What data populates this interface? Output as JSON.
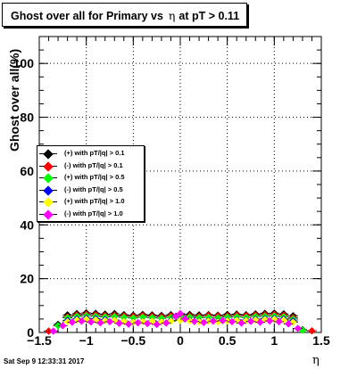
{
  "title": {
    "part1": "Ghost over all for Primary vs",
    "eta": "η",
    "part2": "at pT > 0.11"
  },
  "footer_timestamp": "Sat Sep  9 12:33:31 2017",
  "chart_data": {
    "type": "scatter",
    "ylabel": "Ghost over all(%)",
    "xlabel": "η",
    "xlim": [
      -1.5,
      1.5
    ],
    "ylim": [
      0,
      110
    ],
    "x_ticks": [
      "−1.5",
      "−1",
      "−0.5",
      "0",
      "0.5",
      "1",
      "1.5"
    ],
    "y_ticks": [
      "0",
      "20",
      "40",
      "60",
      "80",
      "100"
    ],
    "grid": true,
    "legend_position": "middle-left",
    "series": [
      {
        "name": "(+) with pT/|q| > 0.1",
        "color": "#000000",
        "x": [
          -1.3,
          -1.2,
          -1.1,
          -1.0,
          -0.9,
          -0.8,
          -0.7,
          -0.6,
          -0.5,
          -0.4,
          -0.3,
          -0.2,
          -0.1,
          0.0,
          0.1,
          0.2,
          0.3,
          0.4,
          0.5,
          0.6,
          0.7,
          0.8,
          0.9,
          1.0,
          1.1,
          1.2,
          1.3
        ],
        "y": [
          3.0,
          6.5,
          7.0,
          7.3,
          7.1,
          6.8,
          7.0,
          6.6,
          6.4,
          6.7,
          6.5,
          6.3,
          6.6,
          6.8,
          6.7,
          6.5,
          6.6,
          6.4,
          6.7,
          6.8,
          6.6,
          6.9,
          7.1,
          7.2,
          6.9,
          6.2,
          1.0
        ]
      },
      {
        "name": "(-) with pT/|q| > 0.1",
        "color": "#ff0000",
        "x": [
          -1.4,
          -1.2,
          -1.1,
          -1.0,
          -0.9,
          -0.8,
          -0.7,
          -0.6,
          -0.5,
          -0.4,
          -0.3,
          -0.2,
          -0.1,
          0.0,
          0.1,
          0.2,
          0.3,
          0.4,
          0.5,
          0.6,
          0.7,
          0.8,
          0.9,
          1.0,
          1.1,
          1.2,
          1.4
        ],
        "y": [
          0.5,
          5.8,
          6.5,
          6.8,
          6.6,
          6.3,
          6.4,
          6.2,
          6.0,
          6.3,
          6.1,
          5.9,
          6.2,
          6.4,
          6.2,
          6.0,
          6.3,
          6.1,
          6.2,
          6.4,
          6.3,
          6.5,
          6.6,
          6.7,
          6.4,
          5.5,
          0.6
        ]
      },
      {
        "name": "(+) with pT/|q| > 0.5",
        "color": "#00ff00",
        "x": [
          -1.3,
          -1.2,
          -1.1,
          -1.0,
          -0.9,
          -0.8,
          -0.7,
          -0.6,
          -0.5,
          -0.4,
          -0.3,
          -0.2,
          -0.1,
          0.0,
          0.1,
          0.2,
          0.3,
          0.4,
          0.5,
          0.6,
          0.7,
          0.8,
          0.9,
          1.0,
          1.1,
          1.2,
          1.3
        ],
        "y": [
          2.5,
          5.5,
          6.0,
          6.2,
          6.0,
          5.8,
          5.9,
          5.6,
          5.4,
          5.7,
          5.5,
          5.3,
          5.6,
          5.8,
          5.7,
          5.5,
          5.6,
          5.4,
          5.7,
          5.8,
          5.6,
          5.9,
          6.0,
          6.1,
          5.8,
          5.0,
          0.8
        ]
      },
      {
        "name": "(-) with pT/|q| > 0.5",
        "color": "#0000ff",
        "x": [
          -1.2,
          -1.1,
          -1.0,
          -0.9,
          -0.8,
          -0.7,
          -0.6,
          -0.5,
          -0.4,
          -0.3,
          -0.2,
          -0.1,
          0.0,
          0.1,
          0.2,
          0.3,
          0.4,
          0.5,
          0.6,
          0.7,
          0.8,
          0.9,
          1.0,
          1.1,
          1.2
        ],
        "y": [
          4.5,
          5.0,
          5.3,
          5.1,
          4.8,
          4.6,
          4.2,
          3.9,
          4.1,
          4.3,
          4.0,
          4.4,
          4.7,
          4.5,
          4.2,
          4.4,
          4.1,
          4.5,
          4.7,
          4.6,
          4.9,
          5.1,
          5.2,
          5.0,
          4.3
        ]
      },
      {
        "name": "(+) with pT/|q| > 1.0",
        "color": "#ffff00",
        "x": [
          -1.2,
          -1.1,
          -1.0,
          -0.9,
          -0.8,
          -0.7,
          -0.6,
          -0.5,
          -0.4,
          -0.3,
          -0.2,
          -0.1,
          0.0,
          0.1,
          0.2,
          0.3,
          0.4,
          0.5,
          0.6,
          0.7,
          0.8,
          0.9,
          1.0,
          1.1,
          1.2
        ],
        "y": [
          4.0,
          4.6,
          4.9,
          4.7,
          4.4,
          4.5,
          4.1,
          3.8,
          4.0,
          4.2,
          3.9,
          4.2,
          4.5,
          4.3,
          4.0,
          4.2,
          3.9,
          4.3,
          4.5,
          4.4,
          4.6,
          4.8,
          4.9,
          4.6,
          3.8
        ]
      },
      {
        "name": "(-) with pT/|q| > 1.0",
        "color": "#ff00ff",
        "x": [
          -1.35,
          -1.25,
          -1.15,
          -1.05,
          -0.95,
          -0.85,
          -0.75,
          -0.65,
          -0.55,
          -0.45,
          -0.35,
          -0.25,
          -0.15,
          -0.05,
          0.0,
          0.05,
          0.15,
          0.25,
          0.35,
          0.45,
          0.55,
          0.65,
          0.75,
          0.85,
          0.95,
          1.05,
          1.15,
          1.25
        ],
        "y": [
          0.5,
          2.5,
          3.8,
          4.2,
          3.9,
          3.6,
          4.0,
          3.4,
          3.1,
          3.6,
          3.3,
          3.0,
          3.5,
          6.0,
          7.0,
          5.0,
          4.1,
          3.7,
          4.2,
          4.4,
          4.0,
          3.5,
          4.1,
          3.8,
          4.3,
          4.0,
          3.2,
          1.5
        ]
      }
    ]
  }
}
